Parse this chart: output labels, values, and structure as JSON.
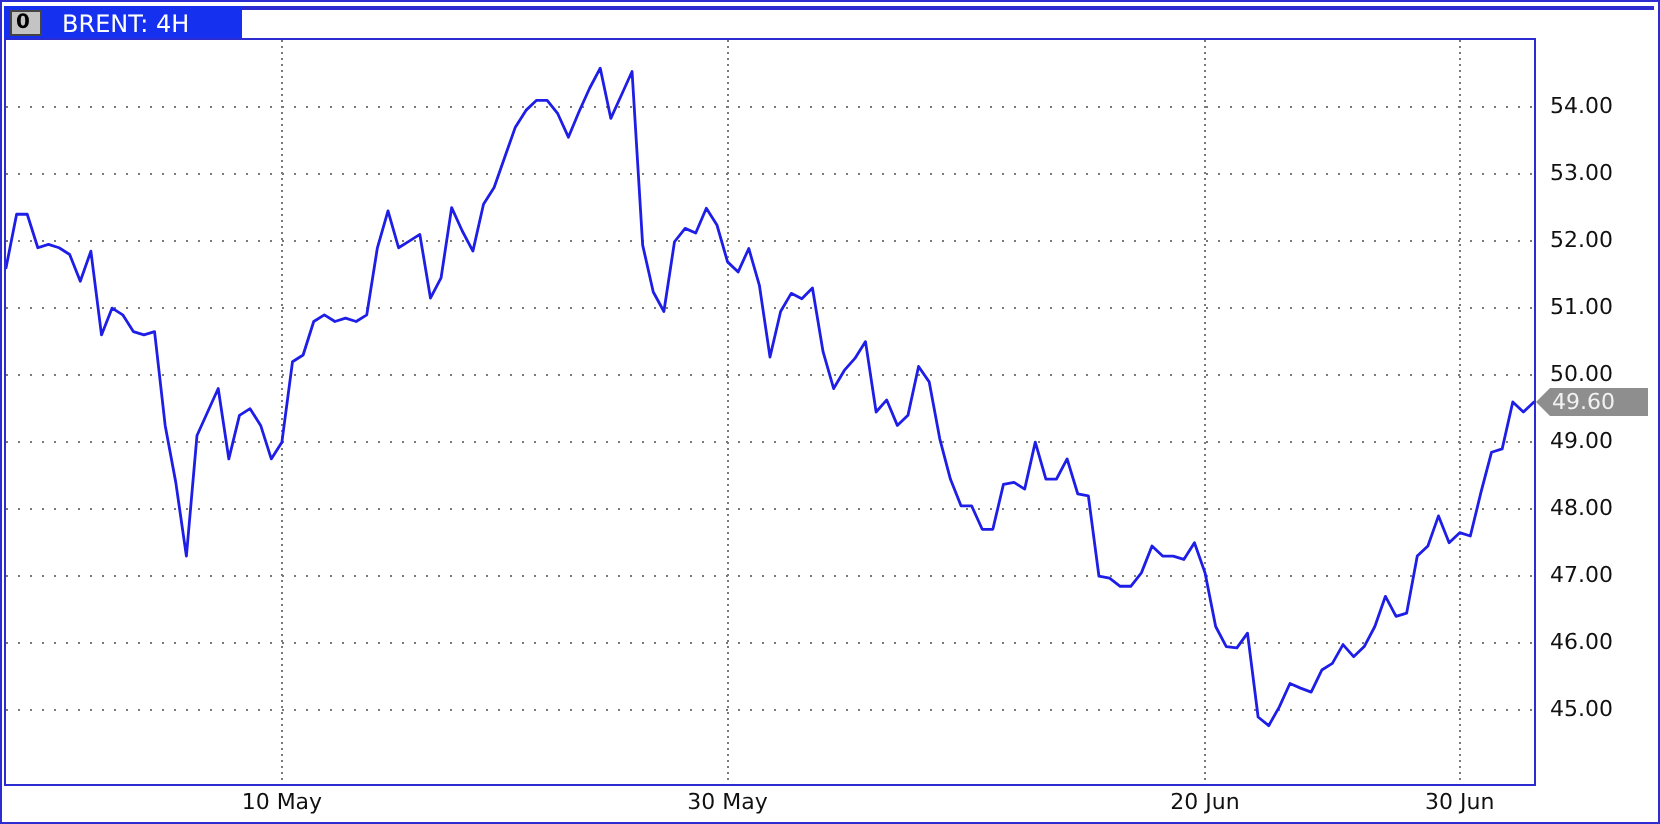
{
  "chart_data": {
    "type": "line",
    "title": "BRENT: 4H",
    "categories": [
      null,
      null,
      null,
      null,
      null,
      null,
      null,
      null,
      null,
      null,
      null,
      null,
      null,
      null,
      null,
      null,
      null,
      null,
      null,
      null,
      null,
      null,
      null,
      null,
      null,
      null,
      "10 May",
      null,
      null,
      null,
      null,
      null,
      null,
      null,
      null,
      null,
      null,
      null,
      null,
      null,
      null,
      null,
      null,
      null,
      null,
      null,
      null,
      null,
      null,
      null,
      null,
      null,
      null,
      null,
      null,
      null,
      null,
      null,
      null,
      null,
      null,
      null,
      null,
      null,
      null,
      null,
      null,
      null,
      "30 May",
      null,
      null,
      null,
      null,
      null,
      null,
      null,
      null,
      null,
      null,
      null,
      null,
      null,
      null,
      null,
      null,
      null,
      null,
      null,
      null,
      null,
      null,
      null,
      null,
      null,
      null,
      null,
      null,
      null,
      null,
      null,
      null,
      null,
      null,
      null,
      null,
      null,
      null,
      null,
      null,
      null,
      null,
      null,
      null,
      "20 Jun",
      null,
      null,
      null,
      null,
      null,
      null,
      null,
      null,
      null,
      null,
      null,
      null,
      null,
      null,
      null,
      null,
      null,
      null,
      null,
      null,
      null,
      null,
      null,
      "30 Jun",
      null,
      null,
      null,
      null,
      null,
      null,
      null
    ],
    "values": [
      51.6,
      52.4,
      52.4,
      51.9,
      51.95,
      51.9,
      51.8,
      51.4,
      51.85,
      50.6,
      51.0,
      50.9,
      50.65,
      50.6,
      50.65,
      49.25,
      48.4,
      47.3,
      49.1,
      49.45,
      49.8,
      48.75,
      49.4,
      49.5,
      49.25,
      48.75,
      49.0,
      50.2,
      50.3,
      50.8,
      50.9,
      50.8,
      50.85,
      50.8,
      50.9,
      51.9,
      52.45,
      51.9,
      52.0,
      52.1,
      51.15,
      51.45,
      52.5,
      52.15,
      51.85,
      52.55,
      52.8,
      53.25,
      53.7,
      53.95,
      54.1,
      54.1,
      53.9,
      53.55,
      53.93,
      54.28,
      54.58,
      53.83,
      54.18,
      54.53,
      51.94,
      51.24,
      50.95,
      51.99,
      52.19,
      52.12,
      52.49,
      52.24,
      51.69,
      51.54,
      51.89,
      51.34,
      50.27,
      50.95,
      51.22,
      51.14,
      51.3,
      50.35,
      49.8,
      50.07,
      50.25,
      50.5,
      49.45,
      49.63,
      49.25,
      49.4,
      50.13,
      49.9,
      49.05,
      48.45,
      48.05,
      48.05,
      47.7,
      47.7,
      48.37,
      48.4,
      48.3,
      49.0,
      48.45,
      48.45,
      48.75,
      48.23,
      48.2,
      47.0,
      46.97,
      46.85,
      46.85,
      47.05,
      47.45,
      47.3,
      47.3,
      47.25,
      47.5,
      47.05,
      46.25,
      45.95,
      45.93,
      46.15,
      44.9,
      44.77,
      45.05,
      45.4,
      45.33,
      45.27,
      45.6,
      45.7,
      45.98,
      45.8,
      45.95,
      46.25,
      46.7,
      46.4,
      46.45,
      47.3,
      47.45,
      47.9,
      47.5,
      47.65,
      47.6,
      48.25,
      48.85,
      48.9,
      49.6,
      49.45,
      49.6
    ],
    "color": "#1e1ee6",
    "marker": "none",
    "grid": true,
    "ylim": [
      43.9,
      55.0
    ],
    "yticks": [
      {
        "value": 45,
        "label": "45.00"
      },
      {
        "value": 46,
        "label": "46.00"
      },
      {
        "value": 47,
        "label": "47.00"
      },
      {
        "value": 48,
        "label": "48.00"
      },
      {
        "value": 49,
        "label": "49.00"
      },
      {
        "value": 50,
        "label": "50.00"
      },
      {
        "value": 51,
        "label": "51.00"
      },
      {
        "value": 52,
        "label": "52.00"
      },
      {
        "value": 53,
        "label": "53.00"
      },
      {
        "value": 54,
        "label": "54.00"
      }
    ],
    "annotations": [
      "0",
      "49.60"
    ]
  }
}
